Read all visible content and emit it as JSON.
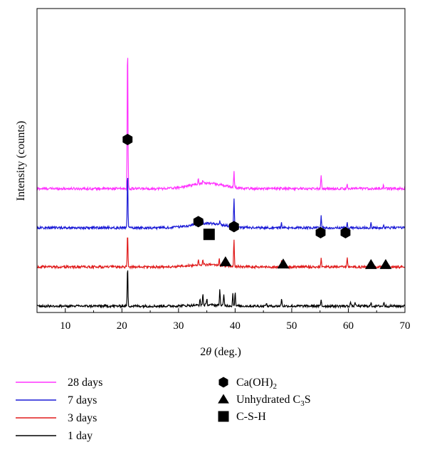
{
  "chart_data": {
    "type": "line",
    "xlabel_italic": "θ",
    "xlabel_prefix": "2",
    "xlabel_suffix": " (deg.)",
    "ylabel": "Intensity (counts)",
    "xlim": [
      5,
      70
    ],
    "xticks": [
      "10",
      "20",
      "30",
      "40",
      "50",
      "60",
      "70"
    ],
    "grid": false,
    "legend_placement": "below",
    "series": [
      {
        "name": "28 days",
        "color": "#ff33ff",
        "offset": 3,
        "peaks": [
          [
            21.0,
            13.5
          ],
          [
            33.5,
            0.4
          ],
          [
            34.3,
            0.3
          ],
          [
            39.8,
            1.5
          ],
          [
            55.2,
            1.3
          ],
          [
            59.8,
            0.5
          ],
          [
            66.2,
            0.3
          ]
        ],
        "hump": [
          35.0,
          4.0,
          0.5
        ]
      },
      {
        "name": "7 days",
        "color": "#1a1ad6",
        "offset": 2,
        "peaks": [
          [
            21.0,
            5.1
          ],
          [
            33.5,
            0.5
          ],
          [
            34.3,
            0.4
          ],
          [
            37.3,
            0.4
          ],
          [
            39.8,
            2.7
          ],
          [
            48.2,
            0.4
          ],
          [
            55.2,
            1.1
          ],
          [
            59.8,
            0.5
          ],
          [
            64.0,
            0.4
          ],
          [
            66.2,
            0.3
          ]
        ],
        "hump": [
          35.0,
          4.0,
          0.4
        ]
      },
      {
        "name": "3 days",
        "color": "#e01b1b",
        "offset": 1,
        "peaks": [
          [
            21.0,
            3.1
          ],
          [
            33.5,
            0.5
          ],
          [
            34.3,
            0.5
          ],
          [
            37.2,
            0.6
          ],
          [
            38.0,
            0.4
          ],
          [
            39.8,
            2.5
          ],
          [
            48.2,
            0.5
          ],
          [
            55.2,
            0.9
          ],
          [
            59.8,
            0.9
          ],
          [
            64.0,
            0.3
          ],
          [
            66.2,
            0.3
          ]
        ],
        "hump": [
          35.0,
          4.0,
          0.2
        ]
      },
      {
        "name": "1 day",
        "color": "#000000",
        "offset": 0,
        "peaks": [
          [
            21.0,
            3.6
          ],
          [
            33.8,
            0.5
          ],
          [
            34.3,
            1.0
          ],
          [
            35.0,
            0.6
          ],
          [
            37.3,
            1.5
          ],
          [
            38.0,
            1.0
          ],
          [
            39.6,
            1.1
          ],
          [
            40.0,
            1.3
          ],
          [
            45.5,
            0.3
          ],
          [
            48.2,
            0.7
          ],
          [
            55.2,
            0.6
          ],
          [
            60.4,
            0.4
          ],
          [
            61.2,
            0.4
          ],
          [
            64.0,
            0.3
          ],
          [
            66.3,
            0.4
          ]
        ],
        "hump": [
          35.0,
          4.0,
          0.1
        ]
      }
    ],
    "phase_legend": [
      {
        "name": "Ca(OH)",
        "sub": "2",
        "after": "",
        "marker": "hexagon"
      },
      {
        "name": "Unhydrated C",
        "sub": "3",
        "after": "S",
        "marker": "triangle"
      },
      {
        "name": "C-S-H",
        "sub": "",
        "after": "",
        "marker": "square"
      }
    ],
    "markers": [
      {
        "type": "hexagon",
        "x": 21.0,
        "level": 15.1
      },
      {
        "type": "hexagon",
        "x": 33.5,
        "level": 7.65
      },
      {
        "type": "square",
        "x": 35.4,
        "level": 6.5
      },
      {
        "type": "hexagon",
        "x": 39.8,
        "level": 7.2
      },
      {
        "type": "hexagon",
        "x": 55.1,
        "level": 6.65
      },
      {
        "type": "hexagon",
        "x": 59.5,
        "level": 6.65
      },
      {
        "type": "triangle",
        "x": 38.3,
        "level": 4.0
      },
      {
        "type": "triangle",
        "x": 48.5,
        "level": 3.8
      },
      {
        "type": "triangle",
        "x": 64.0,
        "level": 3.75
      },
      {
        "type": "triangle",
        "x": 66.6,
        "level": 3.75
      }
    ]
  }
}
